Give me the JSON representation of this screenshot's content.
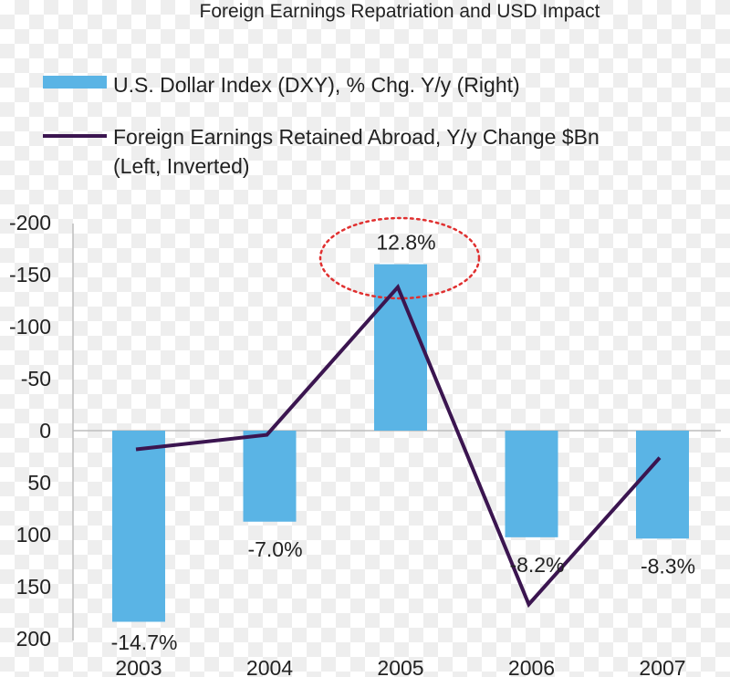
{
  "chart_data": {
    "type": "bar",
    "title": "Foreign Earnings Repatriation and USD Impact",
    "categories": [
      "2003",
      "2004",
      "2005",
      "2006",
      "2007"
    ],
    "series": [
      {
        "name": "U.S. Dollar Index (DXY), % Chg. Y/y (Right)",
        "type": "bar",
        "axis": "right",
        "values": [
          -14.7,
          -7.0,
          12.8,
          -8.2,
          -8.3
        ],
        "labels": [
          "-14.7%",
          "-7.0%",
          "12.8%",
          "-8.2%",
          "-8.3%"
        ],
        "color": "#5ab4e5"
      },
      {
        "name_lines": [
          "Foreign Earnings Retained Abroad, Y/y Change $Bn",
          "(Left, Inverted)"
        ],
        "type": "line",
        "axis": "left",
        "values": [
          18,
          4,
          -138,
          167,
          26
        ],
        "color": "#3b1550"
      }
    ],
    "left_axis": {
      "inverted": true,
      "ylim": [
        -200,
        200
      ],
      "ticks": [
        "-200",
        "-150",
        "-100",
        "-50",
        "0",
        "50",
        "100",
        "150",
        "200"
      ],
      "tick_values": [
        -200,
        -150,
        -100,
        -50,
        0,
        50,
        100,
        150,
        200
      ]
    },
    "grid": false,
    "legend_position": "top",
    "annotation": {
      "type": "dotted-ellipse",
      "target": "2005",
      "color": "#e03030"
    }
  }
}
